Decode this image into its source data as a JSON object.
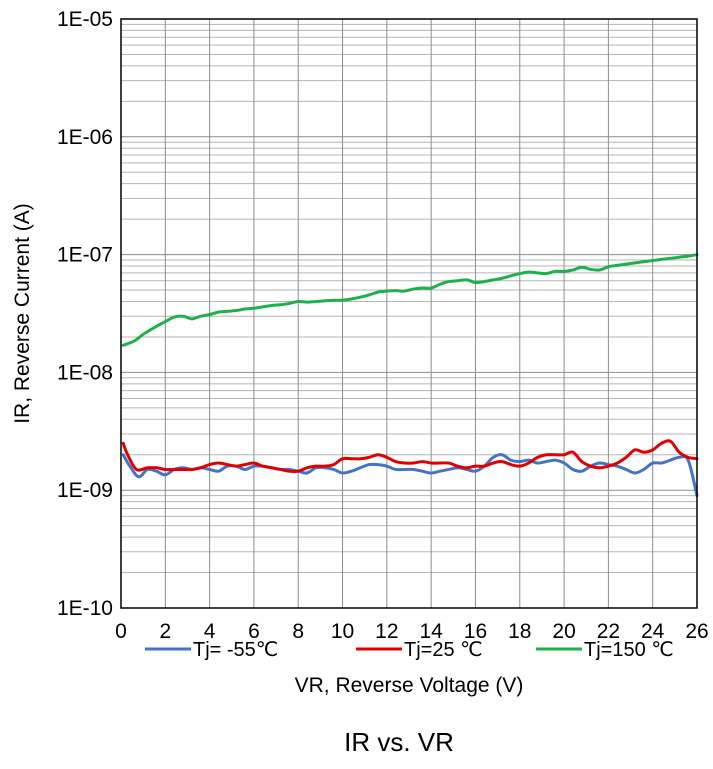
{
  "chart_data": {
    "type": "line",
    "title": "IR vs. VR",
    "xlabel": "VR, Reverse Voltage (V)",
    "ylabel": "IR, Reverse Current (A)",
    "xlim": [
      0,
      26
    ],
    "ylim": [
      1e-10,
      1e-05
    ],
    "y_scale": "log",
    "grid": true,
    "legend_position": "bottom",
    "x_ticks": [
      "0",
      "2",
      "4",
      "6",
      "8",
      "10",
      "12",
      "14",
      "16",
      "18",
      "20",
      "22",
      "24",
      "26"
    ],
    "y_ticks": [
      "1E-10",
      "1E-09",
      "1E-08",
      "1E-07",
      "1E-06",
      "1E-05"
    ],
    "series": [
      {
        "name": "Tj= -55℃",
        "color": "#4472C4",
        "x": [
          0.1,
          0.4,
          0.8,
          1.2,
          1.6,
          2.0,
          2.4,
          2.8,
          3.2,
          3.6,
          4.0,
          4.4,
          4.8,
          5.2,
          5.6,
          6.0,
          6.4,
          6.8,
          7.2,
          7.6,
          8.0,
          8.4,
          8.8,
          9.2,
          9.6,
          10.0,
          10.4,
          10.8,
          11.2,
          11.6,
          12.0,
          12.4,
          12.8,
          13.2,
          13.6,
          14.0,
          14.4,
          14.8,
          15.2,
          15.6,
          16.0,
          16.4,
          16.8,
          17.2,
          17.6,
          18.0,
          18.4,
          18.8,
          19.2,
          19.6,
          20.0,
          20.4,
          20.8,
          21.2,
          21.6,
          22.0,
          22.4,
          22.8,
          23.2,
          23.6,
          24.0,
          24.4,
          24.8,
          25.2,
          25.6,
          26.0
        ],
        "y": [
          2e-09,
          1.6e-09,
          1.3e-09,
          1.5e-09,
          1.45e-09,
          1.35e-09,
          1.5e-09,
          1.55e-09,
          1.5e-09,
          1.55e-09,
          1.5e-09,
          1.45e-09,
          1.6e-09,
          1.6e-09,
          1.5e-09,
          1.6e-09,
          1.6e-09,
          1.55e-09,
          1.5e-09,
          1.5e-09,
          1.45e-09,
          1.4e-09,
          1.55e-09,
          1.55e-09,
          1.5e-09,
          1.4e-09,
          1.45e-09,
          1.55e-09,
          1.65e-09,
          1.65e-09,
          1.6e-09,
          1.5e-09,
          1.5e-09,
          1.5e-09,
          1.45e-09,
          1.4e-09,
          1.45e-09,
          1.5e-09,
          1.55e-09,
          1.5e-09,
          1.45e-09,
          1.6e-09,
          1.9e-09,
          2e-09,
          1.8e-09,
          1.75e-09,
          1.8e-09,
          1.7e-09,
          1.75e-09,
          1.8e-09,
          1.7e-09,
          1.5e-09,
          1.45e-09,
          1.6e-09,
          1.7e-09,
          1.65e-09,
          1.6e-09,
          1.5e-09,
          1.4e-09,
          1.5e-09,
          1.7e-09,
          1.7e-09,
          1.8e-09,
          1.9e-09,
          1.8e-09,
          9e-10
        ]
      },
      {
        "name": "Tj=25 ℃",
        "color": "#E00000",
        "x": [
          0.1,
          0.3,
          0.7,
          1.2,
          1.6,
          2.0,
          2.4,
          2.8,
          3.2,
          3.6,
          4.0,
          4.4,
          4.8,
          5.2,
          5.6,
          6.0,
          6.4,
          6.8,
          7.2,
          7.6,
          8.0,
          8.4,
          8.8,
          9.2,
          9.6,
          10.0,
          10.4,
          10.8,
          11.2,
          11.6,
          12.0,
          12.4,
          12.8,
          13.2,
          13.6,
          14.0,
          14.4,
          14.8,
          15.2,
          15.6,
          16.0,
          16.4,
          16.8,
          17.2,
          17.6,
          18.0,
          18.4,
          18.8,
          19.2,
          19.6,
          20.0,
          20.4,
          20.8,
          21.2,
          21.6,
          22.0,
          22.4,
          22.8,
          23.2,
          23.6,
          24.0,
          24.4,
          24.8,
          25.2,
          25.6,
          26.0
        ],
        "y": [
          2.5e-09,
          2e-09,
          1.5e-09,
          1.55e-09,
          1.55e-09,
          1.5e-09,
          1.5e-09,
          1.5e-09,
          1.5e-09,
          1.55e-09,
          1.65e-09,
          1.7e-09,
          1.65e-09,
          1.6e-09,
          1.65e-09,
          1.7e-09,
          1.6e-09,
          1.55e-09,
          1.5e-09,
          1.45e-09,
          1.45e-09,
          1.55e-09,
          1.6e-09,
          1.6e-09,
          1.65e-09,
          1.85e-09,
          1.85e-09,
          1.85e-09,
          1.9e-09,
          2e-09,
          1.9e-09,
          1.75e-09,
          1.7e-09,
          1.7e-09,
          1.75e-09,
          1.7e-09,
          1.7e-09,
          1.7e-09,
          1.6e-09,
          1.55e-09,
          1.6e-09,
          1.6e-09,
          1.7e-09,
          1.75e-09,
          1.65e-09,
          1.6e-09,
          1.7e-09,
          1.9e-09,
          2e-09,
          2e-09,
          2e-09,
          2.1e-09,
          1.75e-09,
          1.6e-09,
          1.55e-09,
          1.6e-09,
          1.7e-09,
          1.9e-09,
          2.2e-09,
          2.1e-09,
          2.2e-09,
          2.5e-09,
          2.6e-09,
          2.1e-09,
          1.9e-09,
          1.85e-09
        ]
      },
      {
        "name": "Tj=150 ℃",
        "color": "#1FB04A",
        "x": [
          0.1,
          0.6,
          1.0,
          1.5,
          2.0,
          2.4,
          2.8,
          3.2,
          3.6,
          4.0,
          4.4,
          4.8,
          5.2,
          5.6,
          6.0,
          6.4,
          6.8,
          7.2,
          7.6,
          8.0,
          8.4,
          8.8,
          9.2,
          9.6,
          10.0,
          10.4,
          10.8,
          11.2,
          11.6,
          12.0,
          12.4,
          12.8,
          13.2,
          13.6,
          14.0,
          14.4,
          14.8,
          15.2,
          15.6,
          16.0,
          16.4,
          16.8,
          17.2,
          17.6,
          18.0,
          18.4,
          18.8,
          19.2,
          19.6,
          20.0,
          20.4,
          20.8,
          21.2,
          21.6,
          22.0,
          22.4,
          22.8,
          23.2,
          23.6,
          24.0,
          24.4,
          24.8,
          25.2,
          25.6,
          26.0
        ],
        "y": [
          1.7e-08,
          1.85e-08,
          2.1e-08,
          2.4e-08,
          2.7e-08,
          2.95e-08,
          3e-08,
          2.85e-08,
          3e-08,
          3.1e-08,
          3.25e-08,
          3.3e-08,
          3.35e-08,
          3.45e-08,
          3.5e-08,
          3.6e-08,
          3.7e-08,
          3.75e-08,
          3.85e-08,
          4e-08,
          3.95e-08,
          4e-08,
          4.05e-08,
          4.1e-08,
          4.1e-08,
          4.2e-08,
          4.35e-08,
          4.55e-08,
          4.8e-08,
          4.9e-08,
          4.95e-08,
          4.9e-08,
          5.1e-08,
          5.2e-08,
          5.2e-08,
          5.6e-08,
          5.9e-08,
          6e-08,
          6.1e-08,
          5.8e-08,
          5.9e-08,
          6.1e-08,
          6.3e-08,
          6.6e-08,
          6.9e-08,
          7.1e-08,
          7e-08,
          6.9e-08,
          7.2e-08,
          7.2e-08,
          7.4e-08,
          7.8e-08,
          7.5e-08,
          7.4e-08,
          7.9e-08,
          8.1e-08,
          8.3e-08,
          8.5e-08,
          8.7e-08,
          8.9e-08,
          9.1e-08,
          9.3e-08,
          9.5e-08,
          9.7e-08,
          1e-07
        ]
      }
    ]
  }
}
